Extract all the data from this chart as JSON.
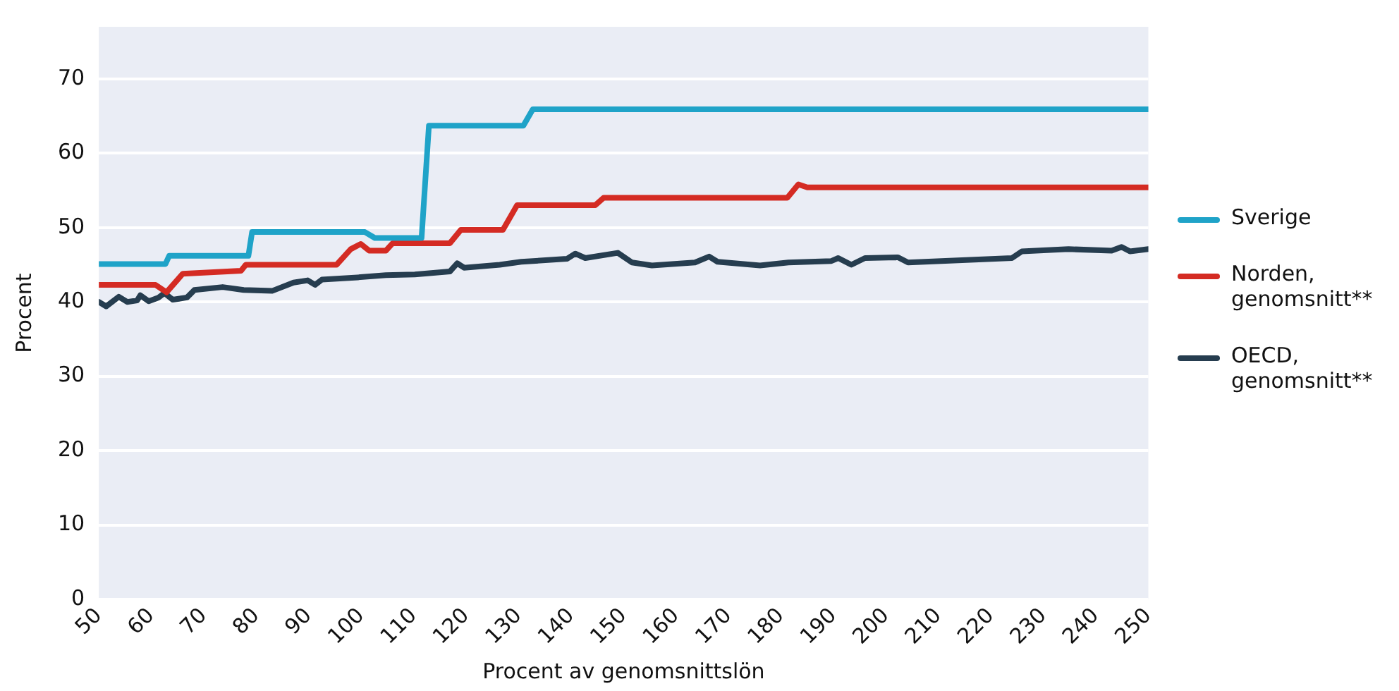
{
  "chart_data": {
    "type": "line",
    "xlabel": "Procent av genomsnittslön",
    "ylabel": "Procent",
    "xlim": [
      50,
      250
    ],
    "xticks": [
      50,
      60,
      70,
      80,
      90,
      100,
      110,
      120,
      130,
      140,
      150,
      160,
      170,
      180,
      190,
      200,
      210,
      220,
      230,
      240,
      250
    ],
    "ylim": [
      0,
      77
    ],
    "yticks": [
      0,
      10,
      20,
      30,
      40,
      50,
      60,
      70
    ],
    "grid": "y",
    "legend": "right",
    "marker": "none",
    "line_style": "solid",
    "series": [
      {
        "name": "Sverige",
        "color": "#1fa3c8",
        "x": [
          50,
          62.7,
          63.4,
          78.5,
          79.2,
          100.7,
          102.6,
          111.5,
          112.9,
          130.9,
          132.7,
          250
        ],
        "values": [
          45.1,
          45.1,
          46.2,
          46.2,
          49.4,
          49.4,
          48.6,
          48.6,
          63.7,
          63.7,
          65.9,
          65.9
        ]
      },
      {
        "name": "Norden, genomsnitt**",
        "color": "#d42b23",
        "x": [
          50,
          60.8,
          62.9,
          66,
          77.1,
          78,
          95.3,
          98,
          99.9,
          101.5,
          104.7,
          106,
          116.9,
          119,
          127,
          129.7,
          144.6,
          146.2,
          181.2,
          183.3,
          185,
          250
        ],
        "values": [
          42.3,
          42.3,
          41.3,
          43.8,
          44.2,
          45,
          45,
          47.1,
          47.8,
          46.9,
          46.9,
          47.9,
          47.9,
          49.7,
          49.7,
          53,
          53,
          54,
          54,
          55.8,
          55.4,
          55.4
        ]
      },
      {
        "name": "OECD, genomsnitt**",
        "color": "#263d4f",
        "x": [
          50,
          51.4,
          53.8,
          55.4,
          57.3,
          57.9,
          59.5,
          61.4,
          62.5,
          64.1,
          66.8,
          68.2,
          73.6,
          77.6,
          83.1,
          87.1,
          89.8,
          91.2,
          92.5,
          99.3,
          104.7,
          110.2,
          116.9,
          118.3,
          119.6,
          126.4,
          130.5,
          139.2,
          140.8,
          142.7,
          148.9,
          151.6,
          155.4,
          163.6,
          166.3,
          167.9,
          176,
          181.4,
          189.6,
          190.9,
          193.4,
          196,
          202.3,
          204.2,
          224,
          225.9,
          234.8,
          243,
          244.9,
          246.5,
          250
        ],
        "values": [
          40,
          39.4,
          40.7,
          40,
          40.2,
          40.9,
          40.1,
          40.6,
          41.2,
          40.3,
          40.6,
          41.6,
          42,
          41.6,
          41.5,
          42.6,
          42.9,
          42.3,
          43,
          43.3,
          43.6,
          43.7,
          44.1,
          45.2,
          44.6,
          45,
          45.4,
          45.8,
          46.5,
          45.9,
          46.6,
          45.3,
          44.9,
          45.3,
          46.1,
          45.4,
          44.9,
          45.3,
          45.5,
          45.9,
          45,
          45.9,
          46,
          45.3,
          45.9,
          46.8,
          47.1,
          46.9,
          47.4,
          46.8,
          47.1
        ]
      }
    ]
  }
}
